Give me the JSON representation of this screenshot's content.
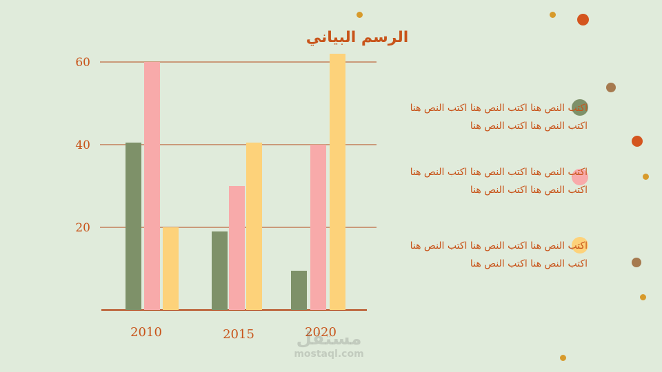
{
  "chart_data": {
    "type": "bar",
    "title": "الرسم البياني",
    "categories": [
      "2010",
      "2015",
      "2020"
    ],
    "series": [
      {
        "values": [
          40.5,
          19,
          9.5
        ],
        "color": "#7e9169"
      },
      {
        "values": [
          60,
          30,
          40
        ],
        "color": "#f8aaaa"
      },
      {
        "values": [
          20,
          40.5,
          62
        ],
        "color": "#fdd27a"
      }
    ],
    "yticks": [
      20,
      40,
      60
    ],
    "ylim": [
      0,
      62
    ],
    "grid": true,
    "legend_position": "right"
  },
  "legend": [
    {
      "text": "اكتب النص هنا اكتب النص هنا اكتب النص هنا اكتب النص هنا اكتب النص هنا",
      "color": "#7e9169"
    },
    {
      "text": "اكتب النص هنا اكتب النص هنا اكتب النص هنا اكتب النص هنا اكتب النص هنا",
      "color": "#f8aaaa"
    },
    {
      "text": "اكتب النص هنا اكتب النص هنا اكتب النص هنا اكتب النص هنا اكتب النص هنا",
      "color": "#fdd27a"
    }
  ],
  "watermark": {
    "line1": "مستقل",
    "line2": "mostaql.com"
  },
  "colors": {
    "accent": "#c8541a",
    "background": "#e0ebdb",
    "grid": "#b5481a"
  }
}
